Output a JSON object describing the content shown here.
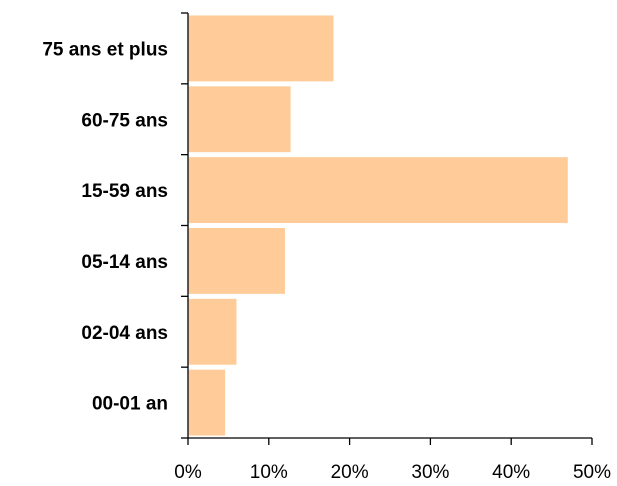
{
  "chart_data": {
    "type": "bar",
    "orientation": "horizontal",
    "categories": [
      "75 ans et plus",
      "60-75 ans",
      "15-59 ans",
      "05-14 ans",
      "02-04 ans",
      "00-01 an"
    ],
    "values": [
      18,
      12.7,
      47,
      12,
      6,
      4.6
    ],
    "value_format": "percent",
    "xlim": [
      0,
      50
    ],
    "xticks": [
      0,
      10,
      20,
      30,
      40,
      50
    ],
    "xtick_labels": [
      "0%",
      "10%",
      "20%",
      "30%",
      "40%",
      "50%"
    ],
    "title": "",
    "xlabel": "",
    "ylabel": "",
    "grid": false,
    "legend": "none",
    "bar_color": "#FFCC99"
  }
}
